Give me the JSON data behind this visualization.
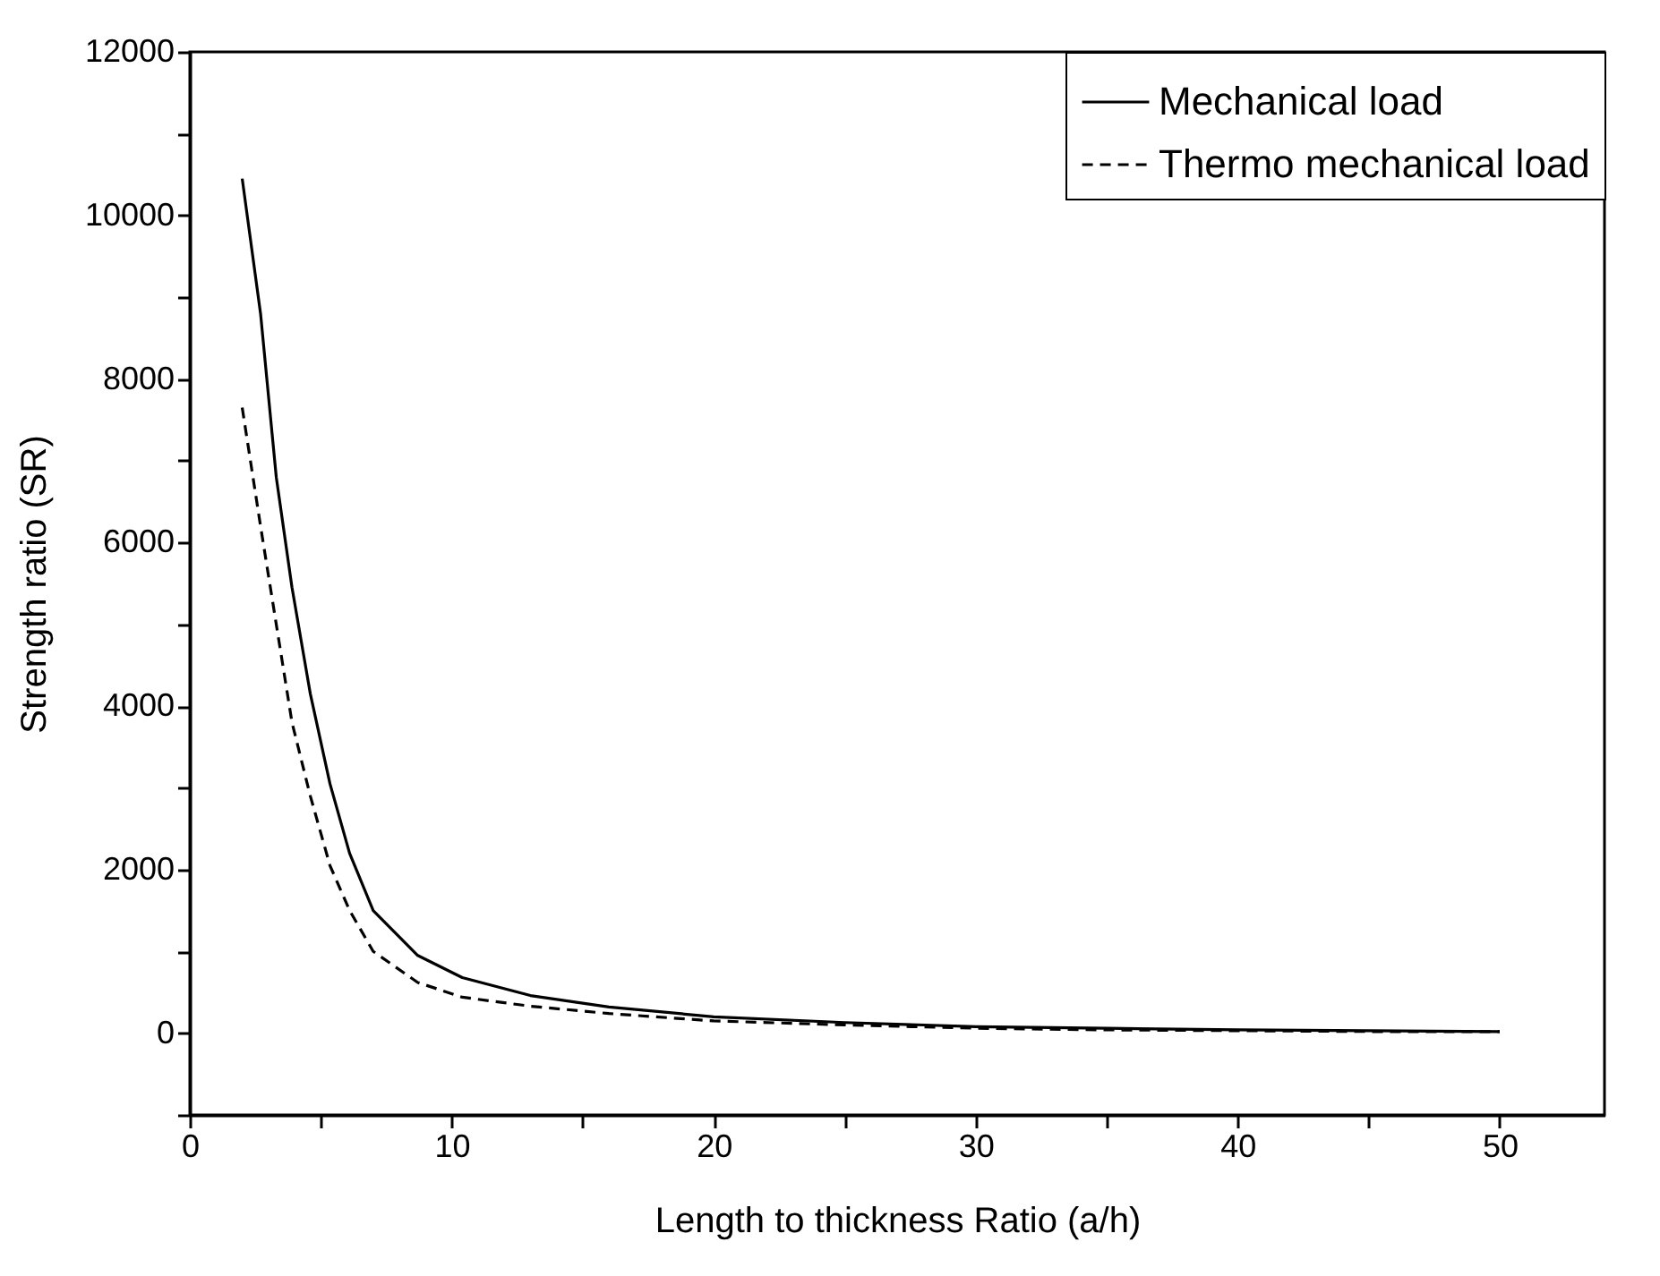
{
  "chart_data": {
    "type": "line",
    "xlabel": "Length to thickness Ratio (a/h)",
    "ylabel": "Strength ratio (SR)",
    "x": [
      2,
      2.7,
      3.3,
      3.9,
      4.6,
      5.35,
      6.1,
      7,
      8.7,
      10.4,
      13,
      16,
      20,
      25,
      30,
      35,
      40,
      45,
      50
    ],
    "series": [
      {
        "name": "Mechanical load",
        "color": "#000000",
        "line_style": "solid",
        "values": [
          10450,
          8800,
          6800,
          5450,
          4150,
          3050,
          2200,
          1500,
          950,
          680,
          460,
          320,
          200,
          130,
          80,
          60,
          40,
          30,
          20
        ]
      },
      {
        "name": "Thermo mechanical load",
        "color": "#000000",
        "line_style": "dashed",
        "values": [
          7650,
          6200,
          5000,
          3800,
          2900,
          2050,
          1500,
          1000,
          620,
          440,
          330,
          240,
          150,
          100,
          60,
          40,
          30,
          20,
          20
        ]
      }
    ],
    "xlim": [
      0,
      54
    ],
    "ylim": [
      -1000,
      12000
    ],
    "xticks": [
      0,
      {
        "value": 5,
        "label": null
      },
      10,
      {
        "value": 15,
        "label": null
      },
      20,
      {
        "value": 25,
        "label": null
      },
      30,
      {
        "value": 35,
        "label": null
      },
      40,
      {
        "value": 45,
        "label": null
      },
      50
    ],
    "yticks": [
      {
        "value": -1000,
        "label": null
      },
      0,
      {
        "value": 1000,
        "label": null
      },
      2000,
      {
        "value": 3000,
        "label": null
      },
      4000,
      {
        "value": 5000,
        "label": null
      },
      6000,
      {
        "value": 7000,
        "label": null
      },
      8000,
      {
        "value": 9000,
        "label": null
      },
      10000,
      {
        "value": 11000,
        "label": null
      },
      12000
    ],
    "grid": false,
    "legend": "top right"
  }
}
